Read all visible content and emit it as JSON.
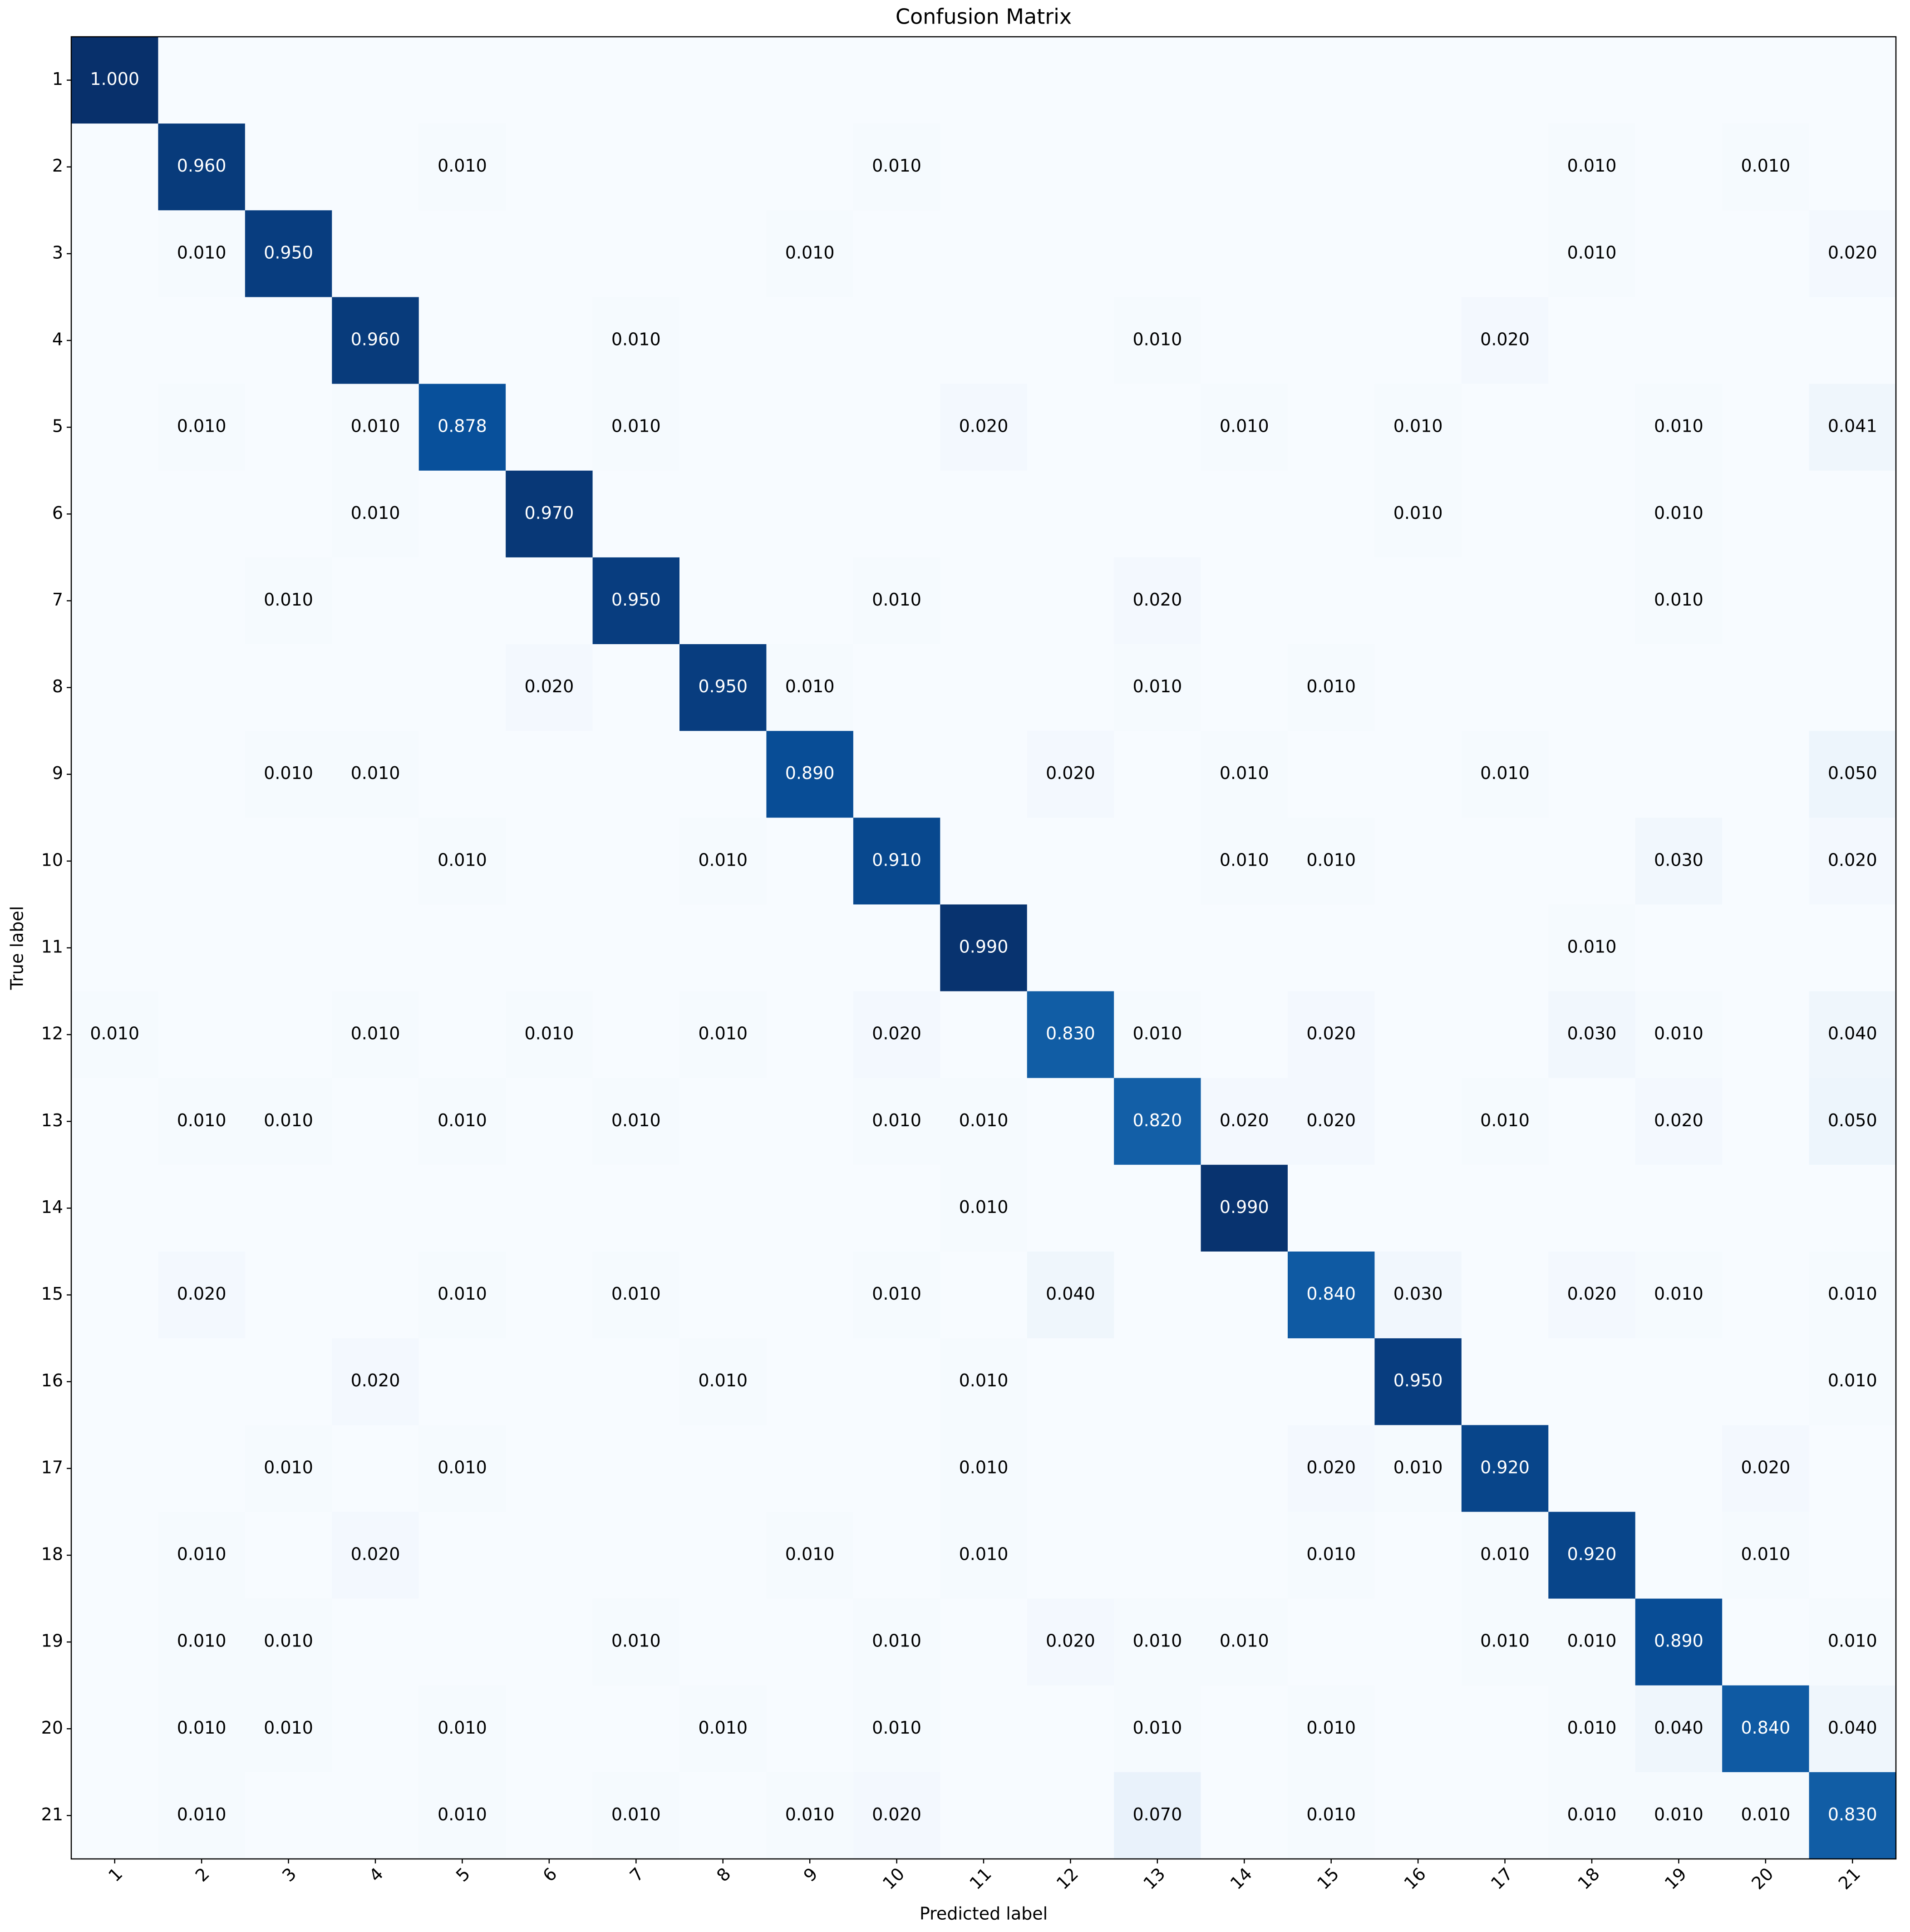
{
  "chart_data": {
    "type": "heatmap",
    "title": "Confusion Matrix",
    "x_label": "Predicted label",
    "y_label": "True label",
    "colormap": "Blues",
    "x_categories": [
      "1",
      "2",
      "3",
      "4",
      "5",
      "6",
      "7",
      "8",
      "9",
      "10",
      "11",
      "12",
      "13",
      "14",
      "15",
      "16",
      "17",
      "18",
      "19",
      "20",
      "21"
    ],
    "y_categories": [
      "1",
      "2",
      "3",
      "4",
      "5",
      "6",
      "7",
      "8",
      "9",
      "10",
      "11",
      "12",
      "13",
      "14",
      "15",
      "16",
      "17",
      "18",
      "19",
      "20",
      "21"
    ],
    "values": [
      [
        1,
        0,
        0,
        0,
        0,
        0,
        0,
        0,
        0,
        0,
        0,
        0,
        0,
        0,
        0,
        0,
        0,
        0,
        0,
        0,
        0
      ],
      [
        0,
        0.96,
        0,
        0,
        0.01,
        0,
        0,
        0,
        0,
        0.01,
        0,
        0,
        0,
        0,
        0,
        0,
        0,
        0.01,
        0,
        0.01,
        0
      ],
      [
        0,
        0.01,
        0.95,
        0,
        0,
        0,
        0,
        0,
        0.01,
        0,
        0,
        0,
        0,
        0,
        0,
        0,
        0,
        0.01,
        0,
        0,
        0.02
      ],
      [
        0,
        0,
        0,
        0.96,
        0,
        0,
        0.01,
        0,
        0,
        0,
        0,
        0,
        0.01,
        0,
        0,
        0,
        0.02,
        0,
        0,
        0,
        0
      ],
      [
        0,
        0.01,
        0,
        0.01,
        0.878,
        0,
        0.01,
        0,
        0,
        0,
        0.02,
        0,
        0,
        0.01,
        0,
        0.01,
        0,
        0,
        0.01,
        0,
        0.041
      ],
      [
        0,
        0,
        0,
        0.01,
        0,
        0.97,
        0,
        0,
        0,
        0,
        0,
        0,
        0,
        0,
        0,
        0.01,
        0,
        0,
        0.01,
        0,
        0
      ],
      [
        0,
        0,
        0.01,
        0,
        0,
        0,
        0.95,
        0,
        0,
        0.01,
        0,
        0,
        0.02,
        0,
        0,
        0,
        0,
        0,
        0.01,
        0,
        0
      ],
      [
        0,
        0,
        0,
        0,
        0,
        0.02,
        0,
        0.95,
        0.01,
        0,
        0,
        0,
        0.01,
        0,
        0.01,
        0,
        0,
        0,
        0,
        0,
        0
      ],
      [
        0,
        0,
        0.01,
        0.01,
        0,
        0,
        0,
        0,
        0.89,
        0,
        0,
        0.02,
        0,
        0.01,
        0,
        0,
        0.01,
        0,
        0,
        0,
        0.05
      ],
      [
        0,
        0,
        0,
        0,
        0.01,
        0,
        0,
        0.01,
        0,
        0.91,
        0,
        0,
        0,
        0.01,
        0.01,
        0,
        0,
        0,
        0.03,
        0,
        0.02
      ],
      [
        0,
        0,
        0,
        0,
        0,
        0,
        0,
        0,
        0,
        0,
        0.99,
        0,
        0,
        0,
        0,
        0,
        0,
        0.01,
        0,
        0,
        0
      ],
      [
        0.01,
        0,
        0,
        0.01,
        0,
        0.01,
        0,
        0.01,
        0,
        0.02,
        0,
        0.83,
        0.01,
        0,
        0.02,
        0,
        0,
        0.03,
        0.01,
        0,
        0.04
      ],
      [
        0,
        0.01,
        0.01,
        0,
        0.01,
        0,
        0.01,
        0,
        0,
        0.01,
        0.01,
        0,
        0.82,
        0.02,
        0.02,
        0,
        0.01,
        0,
        0.02,
        0,
        0.05
      ],
      [
        0,
        0,
        0,
        0,
        0,
        0,
        0,
        0,
        0,
        0,
        0.01,
        0,
        0,
        0.99,
        0,
        0,
        0,
        0,
        0,
        0,
        0
      ],
      [
        0,
        0.02,
        0,
        0,
        0.01,
        0,
        0.01,
        0,
        0,
        0.01,
        0,
        0.04,
        0,
        0,
        0.84,
        0.03,
        0,
        0.02,
        0.01,
        0,
        0.01
      ],
      [
        0,
        0,
        0,
        0.02,
        0,
        0,
        0,
        0.01,
        0,
        0,
        0.01,
        0,
        0,
        0,
        0,
        0.95,
        0,
        0,
        0,
        0,
        0.01
      ],
      [
        0,
        0,
        0.01,
        0,
        0.01,
        0,
        0,
        0,
        0,
        0,
        0.01,
        0,
        0,
        0,
        0.02,
        0.01,
        0.92,
        0,
        0,
        0.02,
        0
      ],
      [
        0,
        0.01,
        0,
        0.02,
        0,
        0,
        0,
        0,
        0.01,
        0,
        0.01,
        0,
        0,
        0,
        0.01,
        0,
        0.01,
        0.92,
        0,
        0.01,
        0
      ],
      [
        0,
        0.01,
        0.01,
        0,
        0,
        0,
        0.01,
        0,
        0,
        0.01,
        0,
        0.02,
        0.01,
        0.01,
        0,
        0,
        0.01,
        0.01,
        0.89,
        0,
        0.01
      ],
      [
        0,
        0.01,
        0.01,
        0,
        0.01,
        0,
        0,
        0.01,
        0,
        0.01,
        0,
        0,
        0.01,
        0,
        0.01,
        0,
        0,
        0.01,
        0.04,
        0.84,
        0.04
      ],
      [
        0,
        0.01,
        0,
        0,
        0.01,
        0,
        0.01,
        0,
        0.01,
        0.02,
        0,
        0,
        0.07,
        0,
        0.01,
        0,
        0,
        0.01,
        0.01,
        0.01,
        0.83
      ]
    ],
    "value_labels": [
      [
        "1.000",
        null,
        null,
        null,
        null,
        null,
        null,
        null,
        null,
        null,
        null,
        null,
        null,
        null,
        null,
        null,
        null,
        null,
        null,
        null,
        null
      ],
      [
        null,
        "0.960",
        null,
        null,
        "0.010",
        null,
        null,
        null,
        null,
        "0.010",
        null,
        null,
        null,
        null,
        null,
        null,
        null,
        "0.010",
        null,
        "0.010",
        null
      ],
      [
        null,
        "0.010",
        "0.950",
        null,
        null,
        null,
        null,
        null,
        "0.010",
        null,
        null,
        null,
        null,
        null,
        null,
        null,
        null,
        "0.010",
        null,
        null,
        "0.020"
      ],
      [
        null,
        null,
        null,
        "0.960",
        null,
        null,
        "0.010",
        null,
        null,
        null,
        null,
        null,
        "0.010",
        null,
        null,
        null,
        "0.020",
        null,
        null,
        null,
        null
      ],
      [
        null,
        "0.010",
        null,
        "0.010",
        "0.878",
        null,
        "0.010",
        null,
        null,
        null,
        "0.020",
        null,
        null,
        "0.010",
        null,
        "0.010",
        null,
        null,
        "0.010",
        null,
        "0.041"
      ],
      [
        null,
        null,
        null,
        "0.010",
        null,
        "0.970",
        null,
        null,
        null,
        null,
        null,
        null,
        null,
        null,
        null,
        "0.010",
        null,
        null,
        "0.010",
        null,
        null
      ],
      [
        null,
        null,
        "0.010",
        null,
        null,
        null,
        "0.950",
        null,
        null,
        "0.010",
        null,
        null,
        "0.020",
        null,
        null,
        null,
        null,
        null,
        "0.010",
        null,
        null
      ],
      [
        null,
        null,
        null,
        null,
        null,
        "0.020",
        null,
        "0.950",
        "0.010",
        null,
        null,
        null,
        "0.010",
        null,
        "0.010",
        null,
        null,
        null,
        null,
        null,
        null
      ],
      [
        null,
        null,
        "0.010",
        "0.010",
        null,
        null,
        null,
        null,
        "0.890",
        null,
        null,
        "0.020",
        null,
        "0.010",
        null,
        null,
        "0.010",
        null,
        null,
        null,
        "0.050"
      ],
      [
        null,
        null,
        null,
        null,
        "0.010",
        null,
        null,
        "0.010",
        null,
        "0.910",
        null,
        null,
        null,
        "0.010",
        "0.010",
        null,
        null,
        null,
        "0.030",
        null,
        "0.020"
      ],
      [
        null,
        null,
        null,
        null,
        null,
        null,
        null,
        null,
        null,
        null,
        "0.990",
        null,
        null,
        null,
        null,
        null,
        null,
        "0.010",
        null,
        null,
        null
      ],
      [
        "0.010",
        null,
        null,
        "0.010",
        null,
        "0.010",
        null,
        "0.010",
        null,
        "0.020",
        null,
        "0.830",
        "0.010",
        null,
        "0.020",
        null,
        null,
        "0.030",
        "0.010",
        null,
        "0.040"
      ],
      [
        null,
        "0.010",
        "0.010",
        null,
        "0.010",
        null,
        "0.010",
        null,
        null,
        "0.010",
        "0.010",
        null,
        "0.820",
        "0.020",
        "0.020",
        null,
        "0.010",
        null,
        "0.020",
        null,
        "0.050"
      ],
      [
        null,
        null,
        null,
        null,
        null,
        null,
        null,
        null,
        null,
        null,
        "0.010",
        null,
        null,
        "0.990",
        null,
        null,
        null,
        null,
        null,
        null,
        null
      ],
      [
        null,
        "0.020",
        null,
        null,
        "0.010",
        null,
        "0.010",
        null,
        null,
        "0.010",
        null,
        "0.040",
        null,
        null,
        "0.840",
        "0.030",
        null,
        "0.020",
        "0.010",
        null,
        "0.010"
      ],
      [
        null,
        null,
        null,
        "0.020",
        null,
        null,
        null,
        "0.010",
        null,
        null,
        "0.010",
        null,
        null,
        null,
        null,
        "0.950",
        null,
        null,
        null,
        null,
        "0.010"
      ],
      [
        null,
        null,
        "0.010",
        null,
        "0.010",
        null,
        null,
        null,
        null,
        null,
        "0.010",
        null,
        null,
        null,
        "0.020",
        "0.010",
        "0.920",
        null,
        null,
        "0.020",
        null
      ],
      [
        null,
        "0.010",
        null,
        "0.020",
        null,
        null,
        null,
        null,
        "0.010",
        null,
        "0.010",
        null,
        null,
        null,
        "0.010",
        null,
        "0.010",
        "0.920",
        null,
        "0.010",
        null
      ],
      [
        null,
        "0.010",
        "0.010",
        null,
        null,
        null,
        "0.010",
        null,
        null,
        "0.010",
        null,
        "0.020",
        "0.010",
        "0.010",
        null,
        null,
        "0.010",
        "0.010",
        "0.890",
        null,
        "0.010"
      ],
      [
        null,
        "0.010",
        "0.010",
        null,
        "0.010",
        null,
        null,
        "0.010",
        null,
        "0.010",
        null,
        null,
        "0.010",
        null,
        "0.010",
        null,
        null,
        "0.010",
        "0.040",
        "0.840",
        "0.040"
      ],
      [
        null,
        "0.010",
        null,
        null,
        "0.010",
        null,
        "0.010",
        null,
        "0.010",
        "0.020",
        null,
        null,
        "0.070",
        null,
        "0.010",
        null,
        null,
        "0.010",
        "0.010",
        "0.010",
        "0.830"
      ]
    ]
  }
}
